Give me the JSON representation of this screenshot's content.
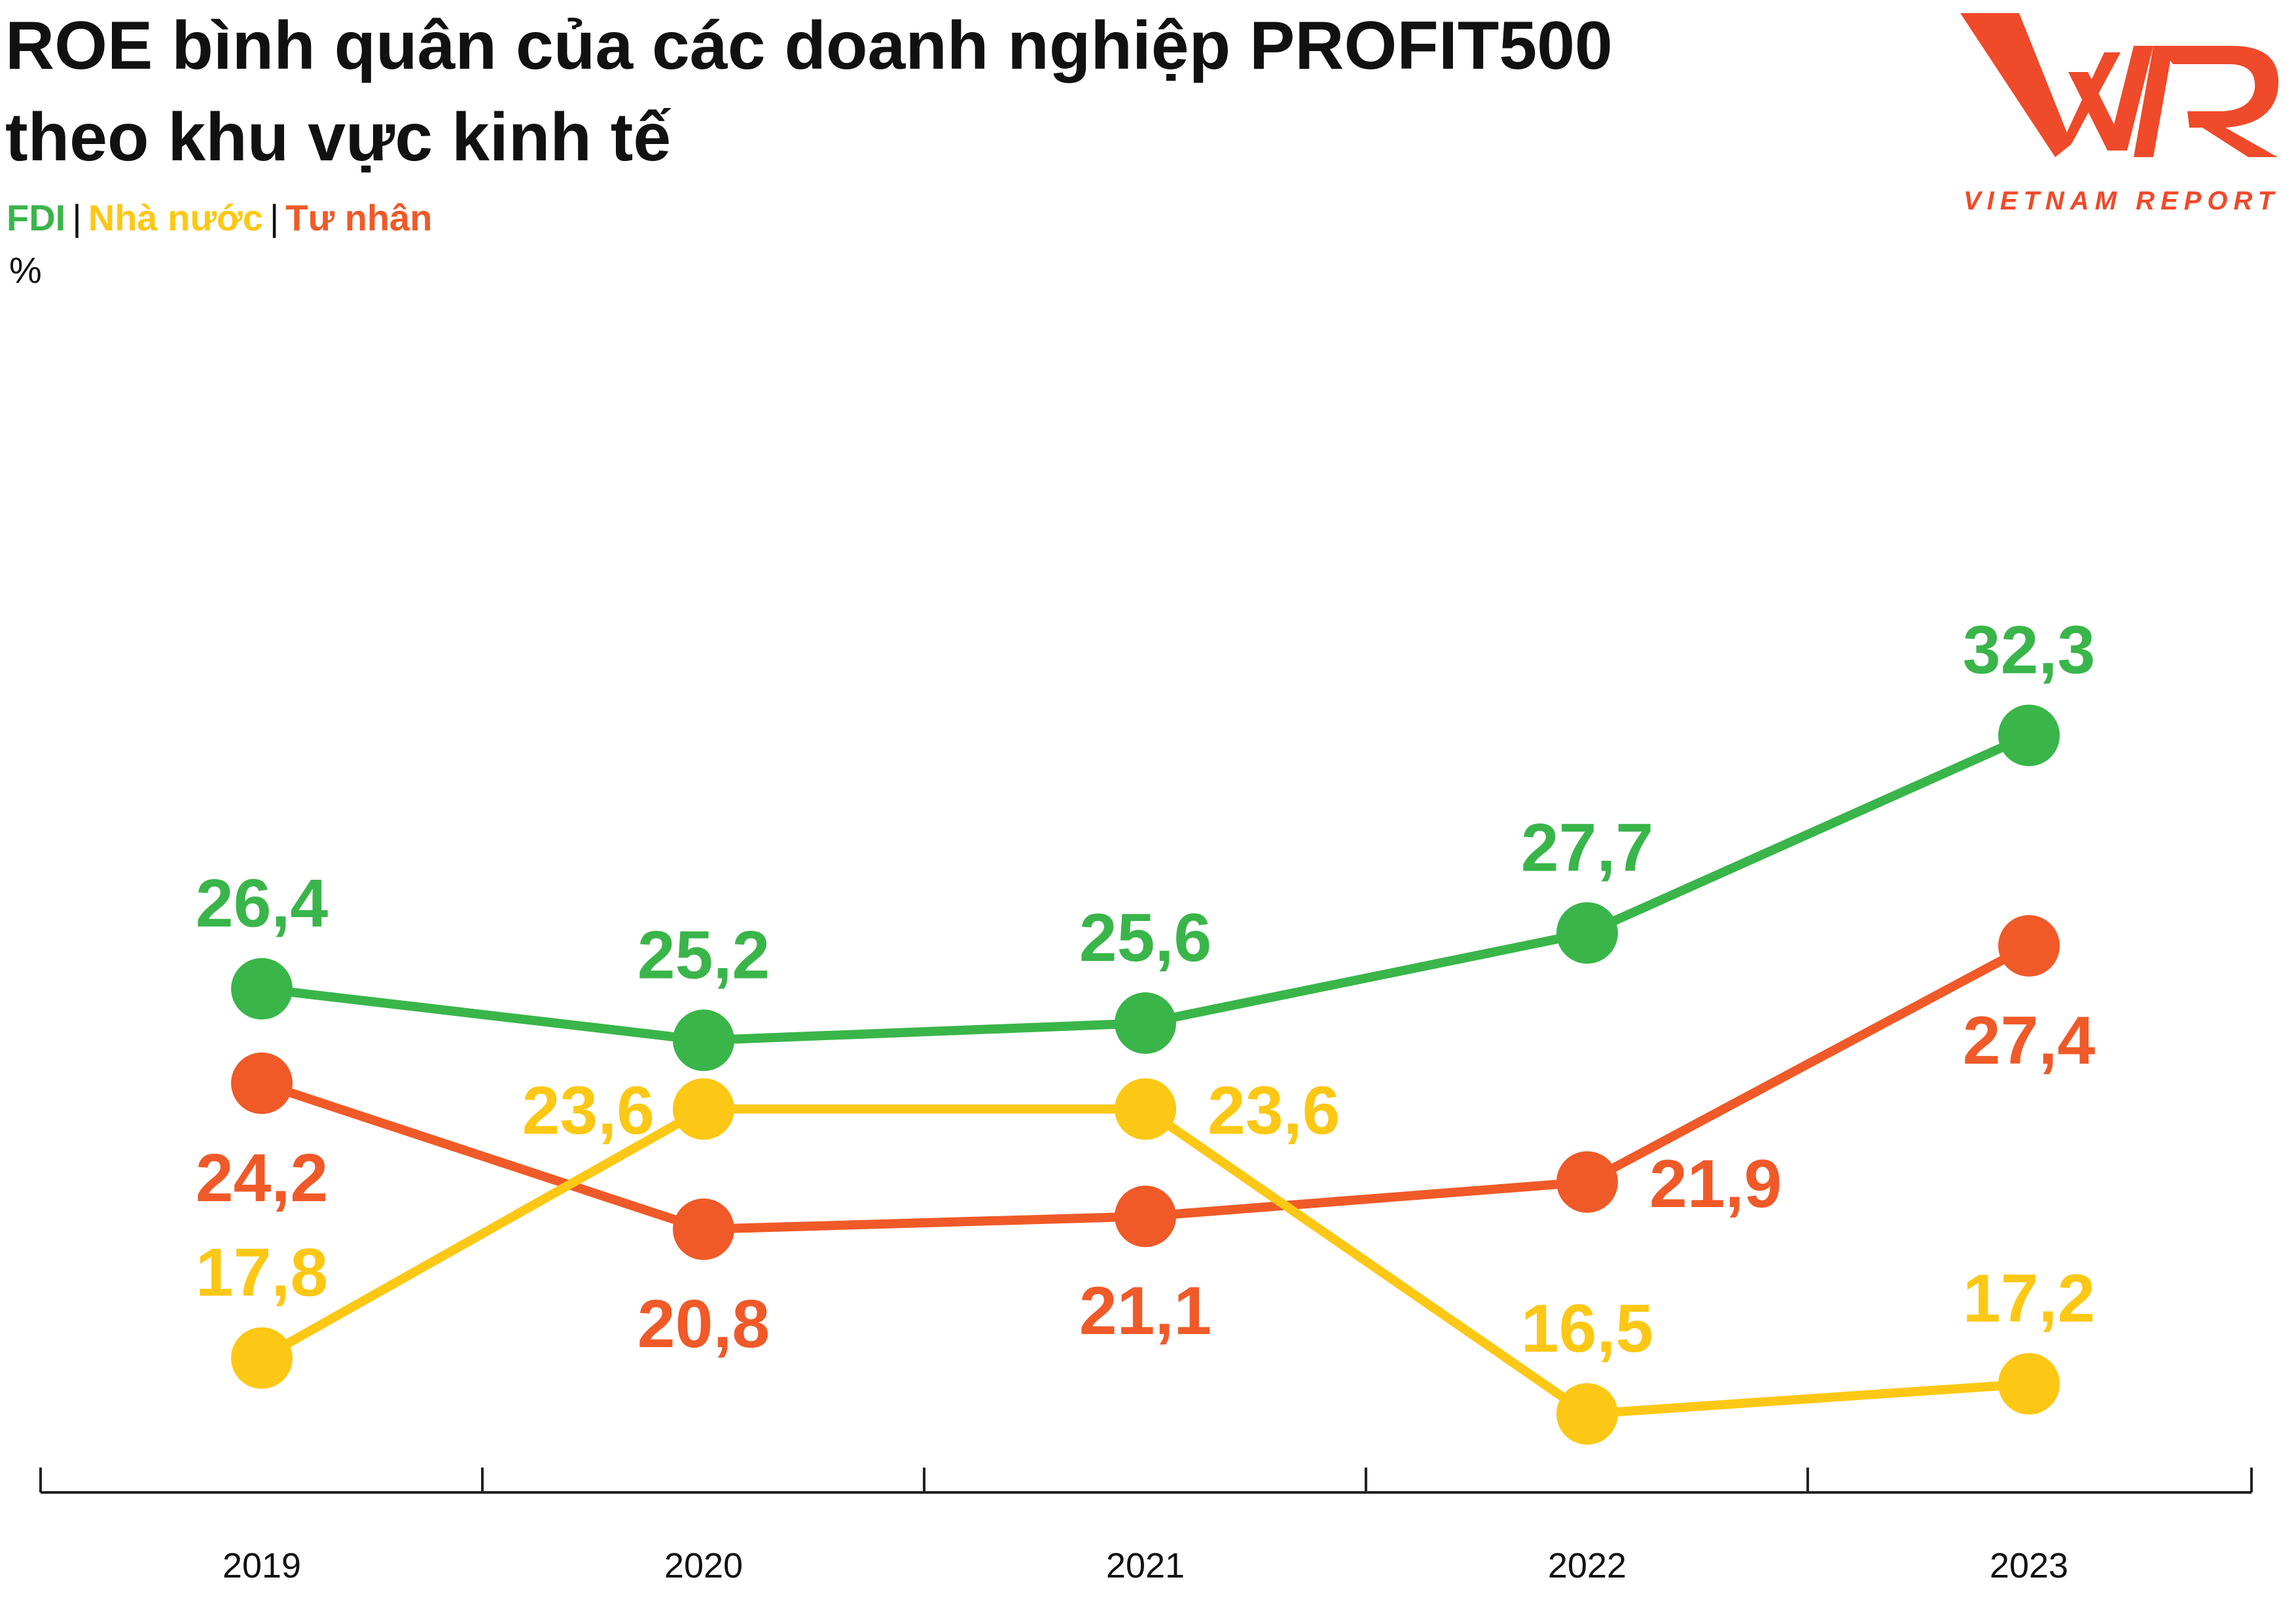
{
  "title_line1": "ROE bình quân của các doanh nghiệp PROFIT500",
  "title_line2": "theo khu vực kinh tế",
  "legend": [
    {
      "label": "FDI",
      "color": "#3ab54a"
    },
    {
      "label": "Nhà nước",
      "color": "#fcc815"
    },
    {
      "label": "Tư nhân",
      "color": "#ef5a28"
    }
  ],
  "legend_separator": "|",
  "unit": "%",
  "logo": {
    "text": "VIETNAM REPORT",
    "mark": "VNR",
    "color": "#ef4a2a"
  },
  "chart_data": {
    "type": "line",
    "x": [
      "2019",
      "2020",
      "2021",
      "2022",
      "2023"
    ],
    "series": [
      {
        "name": "FDI",
        "color": "#3ab54a",
        "values": [
          26.4,
          25.2,
          25.6,
          27.7,
          32.3
        ],
        "labels": [
          "26,4",
          "25,2",
          "25,6",
          "27,7",
          "32,3"
        ],
        "label_pos": [
          "above",
          "above",
          "above",
          "above",
          "above"
        ]
      },
      {
        "name": "Nhà nước",
        "color": "#fcc815",
        "values": [
          17.8,
          23.6,
          23.6,
          16.5,
          17.2
        ],
        "labels": [
          "17,8",
          "23,6",
          "23,6",
          "16,5",
          "17,2"
        ],
        "label_pos": [
          "above",
          "left",
          "right",
          "above",
          "above"
        ]
      },
      {
        "name": "Tư nhân",
        "color": "#ef5a28",
        "values": [
          24.2,
          20.8,
          21.1,
          21.9,
          27.4
        ],
        "labels": [
          "24,2",
          "20,8",
          "21,1",
          "21,9",
          "27,4"
        ],
        "label_pos": [
          "below",
          "below",
          "below",
          "right",
          "below"
        ]
      }
    ]
  }
}
